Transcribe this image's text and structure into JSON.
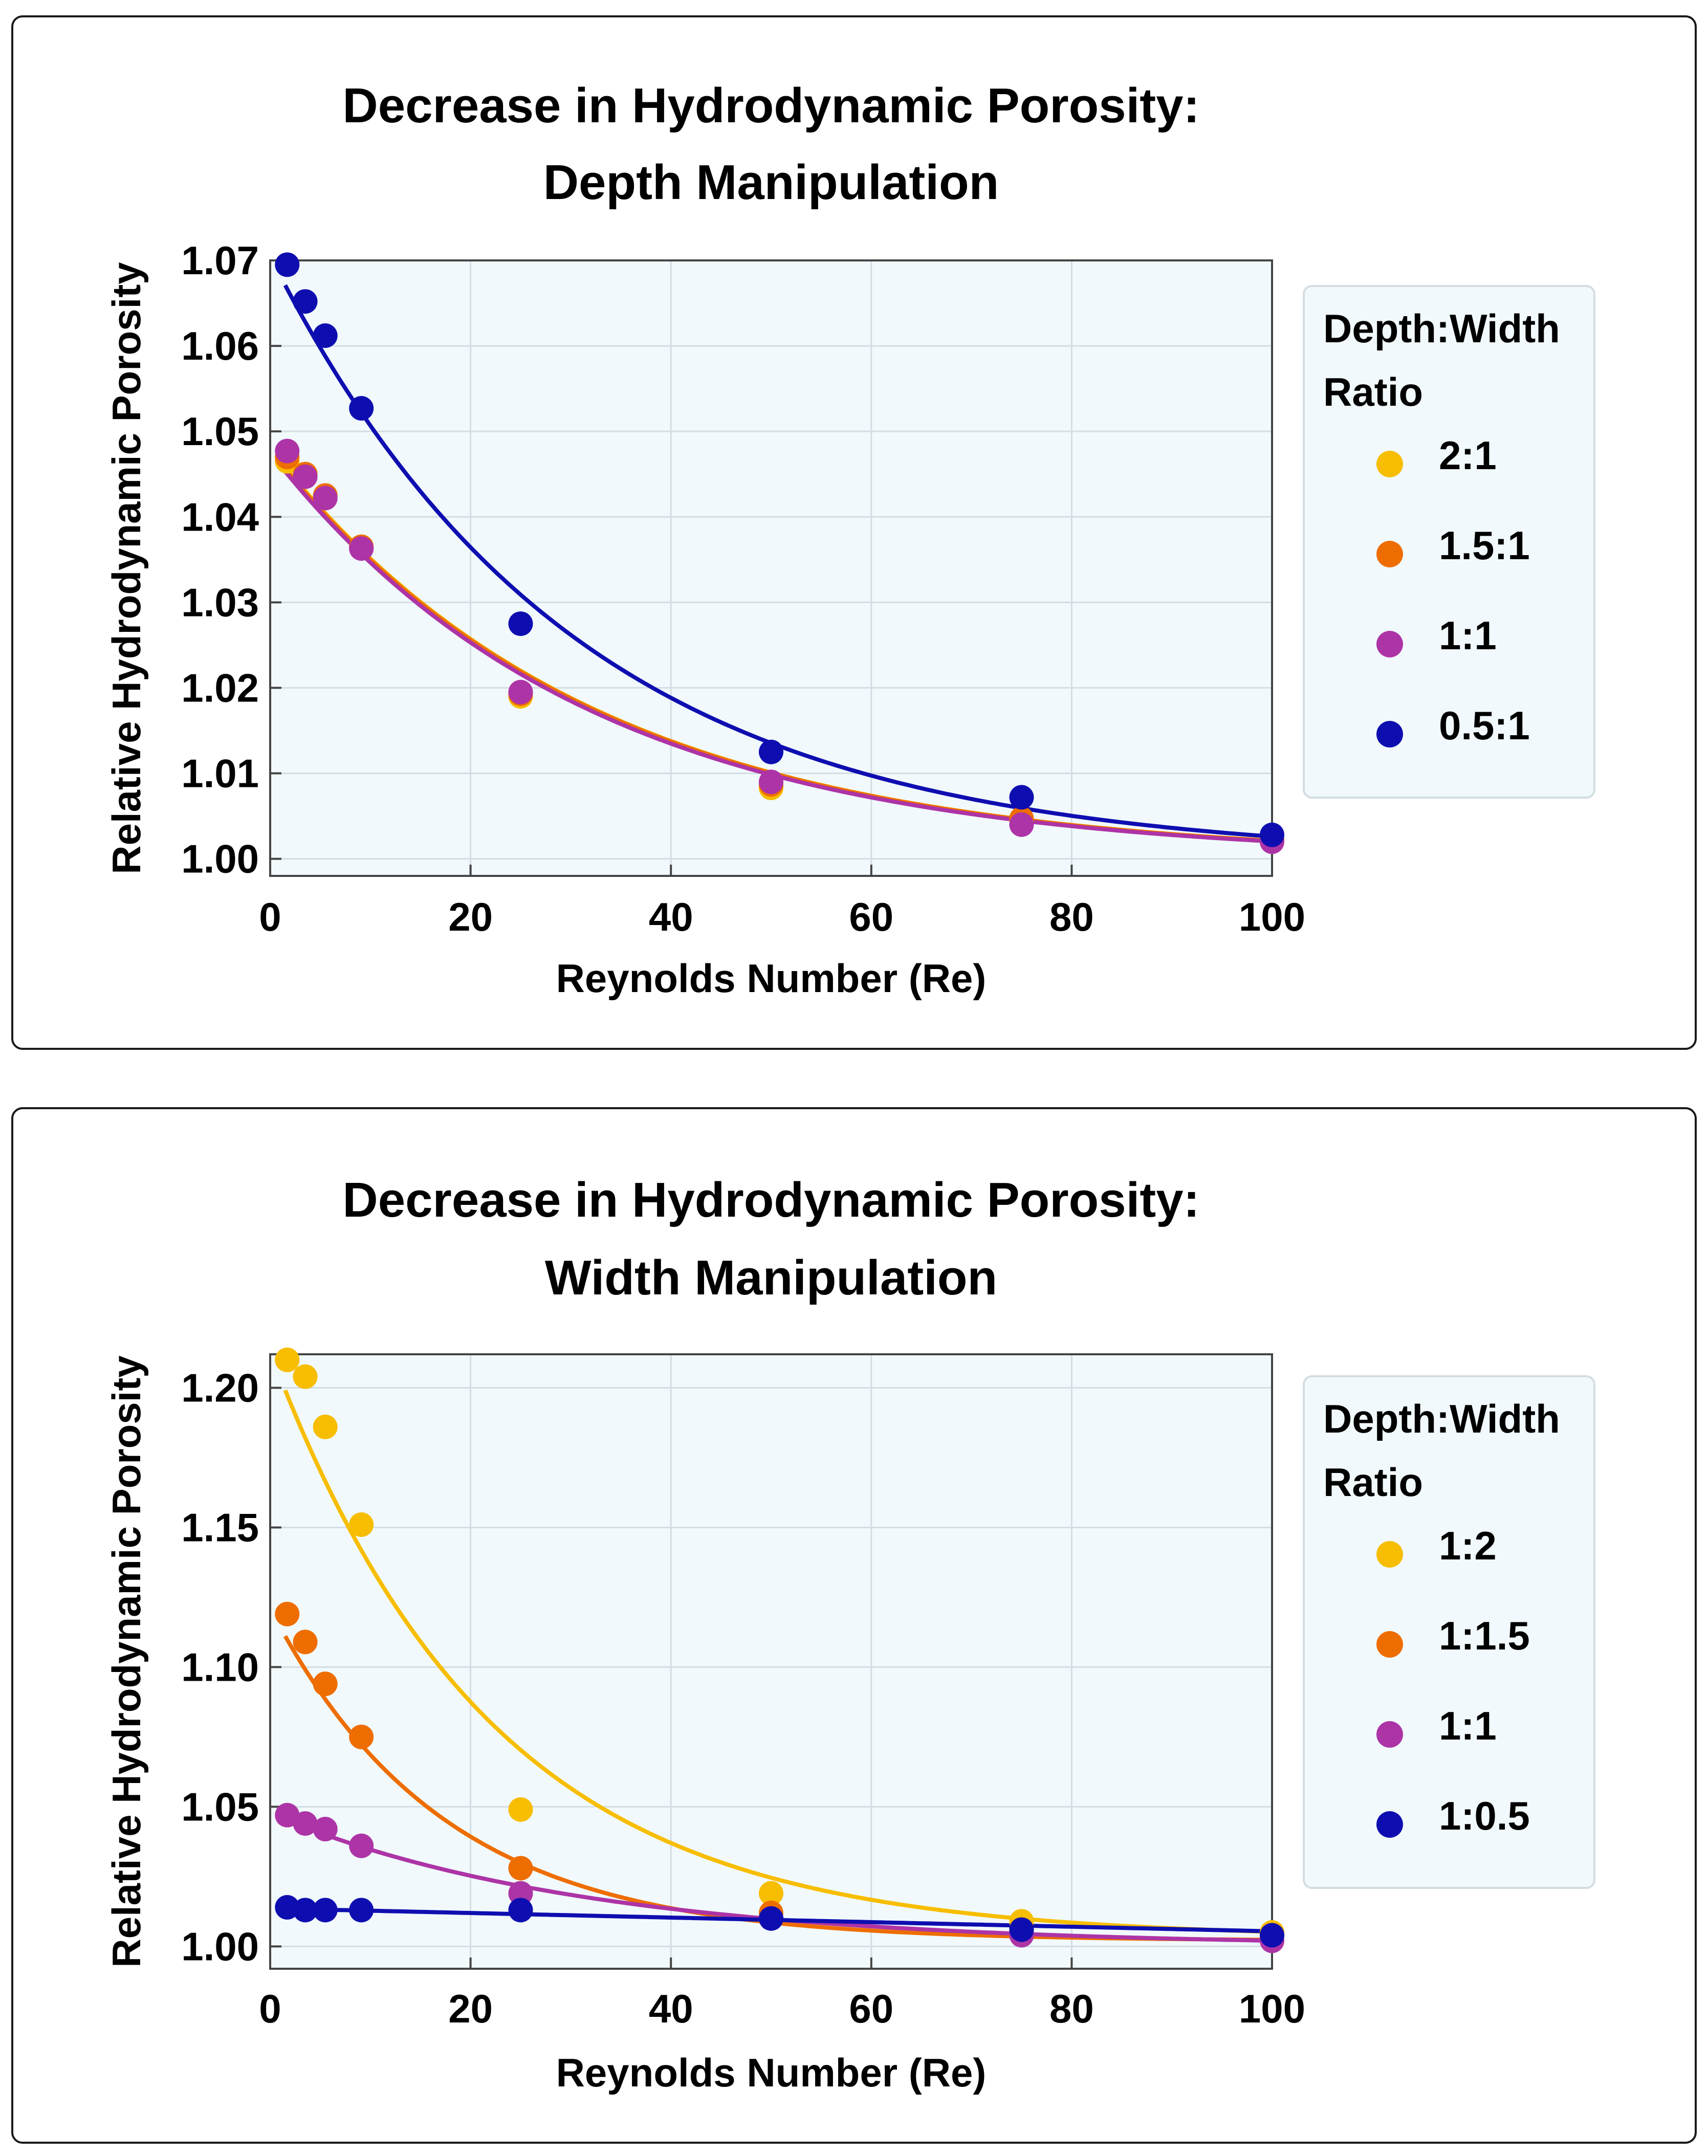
{
  "chart_data": [
    {
      "type": "scatter",
      "title": [
        "Decrease in Hydrodynamic Porosity:",
        "Depth Manipulation"
      ],
      "xlabel": "Reynolds Number (Re)",
      "ylabel": "Relative Hydrodynamic Porosity",
      "xlim": [
        0,
        100
      ],
      "ylim": [
        0.998,
        1.07
      ],
      "xticks": [
        0,
        20,
        40,
        60,
        80,
        100
      ],
      "yticks": [
        1.0,
        1.01,
        1.02,
        1.03,
        1.04,
        1.05,
        1.06,
        1.07
      ],
      "ytick_labels": [
        "1.00",
        "1.01",
        "1.02",
        "1.03",
        "1.04",
        "1.05",
        "1.06",
        "1.07"
      ],
      "grid": true,
      "legend": {
        "title": [
          "Depth:Width",
          "Ratio"
        ],
        "position": "right"
      },
      "x": [
        1.7,
        3.5,
        5.5,
        9.1,
        25,
        50,
        75,
        100
      ],
      "series": [
        {
          "name": "2:1",
          "color": "#f7bd00",
          "values": [
            1.0465,
            1.045,
            1.0425,
            1.0365,
            1.019,
            1.0083,
            1.0045,
            1.0022
          ],
          "fit": {
            "c": 1.0,
            "a": 0.048,
            "k": 0.0312
          }
        },
        {
          "name": "1.5:1",
          "color": "#ee6d00",
          "values": [
            1.047,
            1.045,
            1.0425,
            1.0365,
            1.0193,
            1.0087,
            1.0047,
            1.0022
          ],
          "fit": {
            "c": 1.0,
            "a": 0.0478,
            "k": 0.0312
          }
        },
        {
          "name": "1:1",
          "color": "#ad34a6",
          "values": [
            1.0477,
            1.0447,
            1.0422,
            1.0363,
            1.0195,
            1.009,
            1.004,
            1.002
          ],
          "fit": {
            "c": 1.0,
            "a": 0.0475,
            "k": 0.0315
          }
        },
        {
          "name": "0.5:1",
          "color": "#0e0eb0",
          "values": [
            1.0695,
            1.0652,
            1.0612,
            1.0527,
            1.0275,
            1.0125,
            1.0072,
            1.0028
          ],
          "fit": {
            "c": 1.0,
            "a": 0.0705,
            "k": 0.033
          }
        }
      ]
    },
    {
      "type": "scatter",
      "title": [
        "Decrease in Hydrodynamic Porosity:",
        "Width Manipulation"
      ],
      "xlabel": "Reynolds Number (Re)",
      "ylabel": "Relative Hydrodynamic Porosity",
      "xlim": [
        0,
        100
      ],
      "ylim": [
        0.992,
        1.212
      ],
      "xticks": [
        0,
        20,
        40,
        60,
        80,
        100
      ],
      "yticks": [
        1.0,
        1.05,
        1.1,
        1.15,
        1.2
      ],
      "ytick_labels": [
        "1.00",
        "1.05",
        "1.10",
        "1.15",
        "1.20"
      ],
      "grid": true,
      "legend": {
        "title": [
          "Depth:Width",
          "Ratio"
        ],
        "position": "right"
      },
      "x": [
        1.7,
        3.5,
        5.5,
        9.1,
        25,
        50,
        75,
        100
      ],
      "series": [
        {
          "name": "1:2",
          "color": "#f7bd00",
          "values": [
            1.21,
            1.204,
            1.186,
            1.151,
            1.049,
            1.019,
            1.009,
            1.005
          ],
          "fit": {
            "c": 1.003,
            "a": 0.21,
            "k": 0.0455
          }
        },
        {
          "name": "1:1.5",
          "color": "#ee6d00",
          "values": [
            1.119,
            1.109,
            1.094,
            1.075,
            1.028,
            1.012,
            1.006,
            1.004
          ],
          "fit": {
            "c": 1.002,
            "a": 0.119,
            "k": 0.058
          }
        },
        {
          "name": "1:1",
          "color": "#ad34a6",
          "values": [
            1.047,
            1.044,
            1.042,
            1.036,
            1.019,
            1.01,
            1.004,
            1.002
          ],
          "fit": {
            "c": 1.0,
            "a": 0.0475,
            "k": 0.0315
          }
        },
        {
          "name": "1:0.5",
          "color": "#0e0eb0",
          "values": [
            1.014,
            1.013,
            1.013,
            1.013,
            1.013,
            1.01,
            1.006,
            1.004
          ],
          "fit": {
            "linear": true,
            "b": 1.0136,
            "m": -8.2e-05
          }
        }
      ]
    }
  ]
}
